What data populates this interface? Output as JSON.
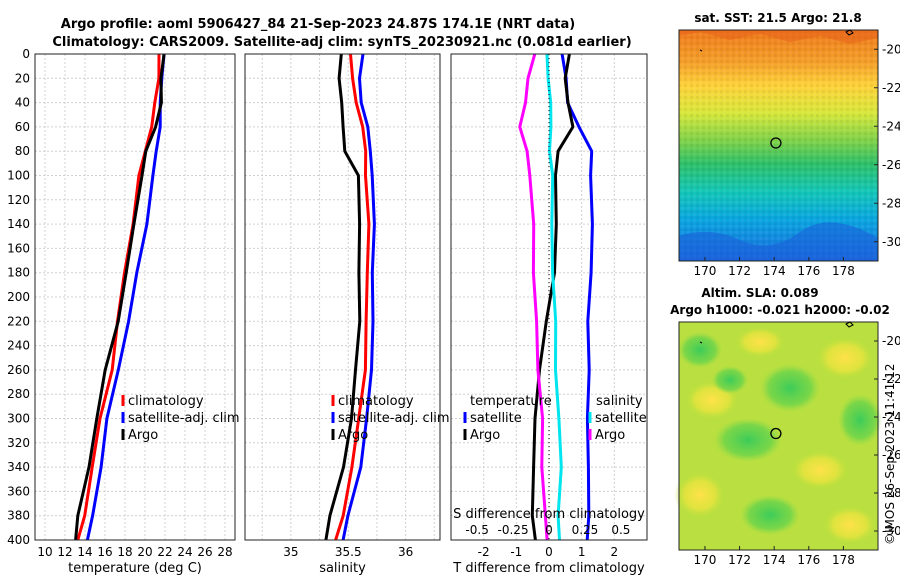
{
  "title": {
    "line1": "Argo profile: aoml 5906427_84 21-Sep-2023 24.87S 174.1E (NRT data)",
    "line2": "Climatology: CARS2009. Satellite-adj clim: synTS_20230921.nc (0.081d earlier)"
  },
  "colors": {
    "climatology": "#ff0000",
    "satellite": "#0000ff",
    "argo": "#000000",
    "cyan": "#00e5ee",
    "magenta": "#ff00ff"
  },
  "depth_ticks": [
    "0",
    "20",
    "40",
    "60",
    "80",
    "100",
    "120",
    "140",
    "160",
    "180",
    "200",
    "220",
    "240",
    "260",
    "280",
    "300",
    "320",
    "340",
    "360",
    "380",
    "400"
  ],
  "chart_data": [
    {
      "type": "line",
      "id": "temperature",
      "xlabel": "temperature (deg C)",
      "ylabel": "depth",
      "xlim": [
        9,
        29
      ],
      "ylim": [
        400,
        0
      ],
      "xticks": [
        "10",
        "12",
        "14",
        "16",
        "18",
        "20",
        "22",
        "24",
        "26",
        "28"
      ],
      "legend": [
        "climatology",
        "satellite-adj. clim",
        "Argo"
      ],
      "series": [
        {
          "name": "climatology",
          "color": "#ff0000",
          "depth": [
            0,
            20,
            40,
            60,
            80,
            100,
            140,
            180,
            220,
            260,
            300,
            340,
            380,
            400
          ],
          "values": [
            21.4,
            21.3,
            21.1,
            20.6,
            20.0,
            19.5,
            18.7,
            18.0,
            17.3,
            16.6,
            15.6,
            14.7,
            13.9,
            13.4
          ]
        },
        {
          "name": "satellite-adj. clim",
          "color": "#0000ff",
          "depth": [
            0,
            20,
            40,
            60,
            80,
            100,
            140,
            180,
            220,
            260,
            300,
            340,
            380,
            400
          ],
          "values": [
            21.8,
            21.7,
            21.6,
            21.4,
            21.2,
            20.8,
            20.1,
            19.3,
            18.3,
            17.3,
            16.3,
            15.5,
            14.8,
            14.3
          ]
        },
        {
          "name": "Argo",
          "color": "#000000",
          "depth": [
            0,
            20,
            40,
            60,
            80,
            100,
            140,
            180,
            220,
            260,
            300,
            340,
            380,
            400
          ],
          "values": [
            21.8,
            21.7,
            21.6,
            21.0,
            20.2,
            19.6,
            18.9,
            18.2,
            17.2,
            16.1,
            15.2,
            14.3,
            13.4,
            13.0
          ]
        }
      ]
    },
    {
      "type": "line",
      "id": "salinity",
      "xlabel": "salinity",
      "ylabel": "depth",
      "xlim": [
        34.6,
        36.3
      ],
      "ylim": [
        400,
        0
      ],
      "xticks": [
        "35",
        "35.5",
        "36"
      ],
      "legend": [
        "climatology",
        "satellite-adj. clim",
        "Argo"
      ],
      "series": [
        {
          "name": "climatology",
          "color": "#ff0000",
          "depth": [
            0,
            20,
            40,
            60,
            80,
            100,
            140,
            180,
            220,
            260,
            300,
            340,
            380,
            400
          ],
          "values": [
            35.52,
            35.53,
            35.58,
            35.62,
            35.65,
            35.66,
            35.67,
            35.67,
            35.66,
            35.64,
            35.6,
            35.53,
            35.45,
            35.4
          ]
        },
        {
          "name": "satellite-adj. clim",
          "color": "#0000ff",
          "depth": [
            0,
            20,
            40,
            60,
            80,
            100,
            140,
            180,
            220,
            260,
            300,
            340,
            380,
            400
          ],
          "values": [
            35.62,
            35.6,
            35.62,
            35.66,
            35.7,
            35.71,
            35.72,
            35.72,
            35.71,
            35.7,
            35.67,
            35.6,
            35.5,
            35.46
          ]
        },
        {
          "name": "Argo",
          "color": "#000000",
          "depth": [
            0,
            20,
            40,
            60,
            80,
            100,
            140,
            180,
            220,
            260,
            300,
            340,
            380,
            400
          ],
          "values": [
            35.43,
            35.43,
            35.44,
            35.45,
            35.48,
            35.58,
            35.6,
            35.6,
            35.59,
            35.57,
            35.53,
            35.45,
            35.35,
            35.3
          ]
        }
      ]
    },
    {
      "type": "line",
      "id": "difference",
      "xlabel": "T difference from climatology",
      "xlabel2": "S difference from climatology",
      "ylabel": "depth",
      "xlim": [
        -3,
        3
      ],
      "ylim": [
        400,
        0
      ],
      "xticks": [
        "-2",
        "-1",
        "0",
        "1",
        "2"
      ],
      "xticks2": [
        "-0.5",
        "-0.25",
        "0",
        "0.25",
        "0.5"
      ],
      "legend_left_title": "temperature",
      "legend_right_title": "salinity",
      "legend_left": [
        "satellite",
        "Argo"
      ],
      "legend_right": [
        "satellite",
        "Argo"
      ],
      "series": [
        {
          "name": "T satellite",
          "color": "#0000ff",
          "depth": [
            0,
            20,
            40,
            60,
            80,
            100,
            140,
            180,
            220,
            260,
            300,
            340,
            380,
            400
          ],
          "values": [
            0.4,
            0.5,
            0.6,
            0.9,
            1.3,
            1.3,
            1.3,
            1.3,
            1.2,
            1.2,
            1.2,
            1.2,
            1.2,
            1.2
          ]
        },
        {
          "name": "T Argo",
          "color": "#000000",
          "depth": [
            0,
            20,
            40,
            60,
            80,
            100,
            140,
            180,
            220,
            260,
            300,
            340,
            380,
            400
          ],
          "values": [
            0.6,
            0.5,
            0.6,
            0.7,
            0.3,
            0.2,
            0.2,
            0.2,
            -0.1,
            -0.3,
            -0.4,
            -0.5,
            -0.5,
            -0.4
          ]
        },
        {
          "name": "S satellite",
          "color": "#00e5ee",
          "depth": [
            0,
            20,
            40,
            60,
            80,
            100,
            140,
            180,
            220,
            260,
            300,
            340,
            380,
            400
          ],
          "values": [
            -0.02,
            0.0,
            0.01,
            0.01,
            0.01,
            0.02,
            0.02,
            0.03,
            0.04,
            0.05,
            0.07,
            0.08,
            0.07,
            0.07
          ]
        },
        {
          "name": "S Argo",
          "color": "#ff00ff",
          "depth": [
            0,
            20,
            40,
            60,
            80,
            100,
            140,
            180,
            220,
            260,
            300,
            340,
            380,
            400
          ],
          "values": [
            -0.1,
            -0.14,
            -0.17,
            -0.2,
            -0.15,
            -0.14,
            -0.1,
            -0.11,
            -0.09,
            -0.07,
            -0.05,
            -0.05,
            -0.02,
            -0.02
          ]
        }
      ]
    },
    {
      "type": "heatmap",
      "id": "sst_map",
      "title": "sat. SST: 21.5 Argo: 21.8",
      "xticks": [
        "170",
        "172",
        "174",
        "176",
        "178"
      ],
      "yticks": [
        "-20",
        "-22",
        "-24",
        "-26",
        "-28",
        "-30"
      ],
      "xlim": [
        168.5,
        180
      ],
      "ylim": [
        -31,
        -19
      ],
      "marker": {
        "lon": 174.1,
        "lat": -24.87
      }
    },
    {
      "type": "heatmap",
      "id": "sla_map",
      "title": "Altim. SLA: 0.089",
      "subtitle": "Argo h1000: -0.021 h2000: -0.02",
      "xticks": [
        "170",
        "172",
        "174",
        "176",
        "178"
      ],
      "yticks": [
        "-20",
        "-22",
        "-24",
        "-26",
        "-28",
        "-30"
      ],
      "xlim": [
        168.5,
        180
      ],
      "ylim": [
        -31,
        -19
      ],
      "marker": {
        "lon": 174.1,
        "lat": -24.87
      }
    }
  ],
  "watermark": "©IMOS 26-Sep-2023 11:41:12"
}
